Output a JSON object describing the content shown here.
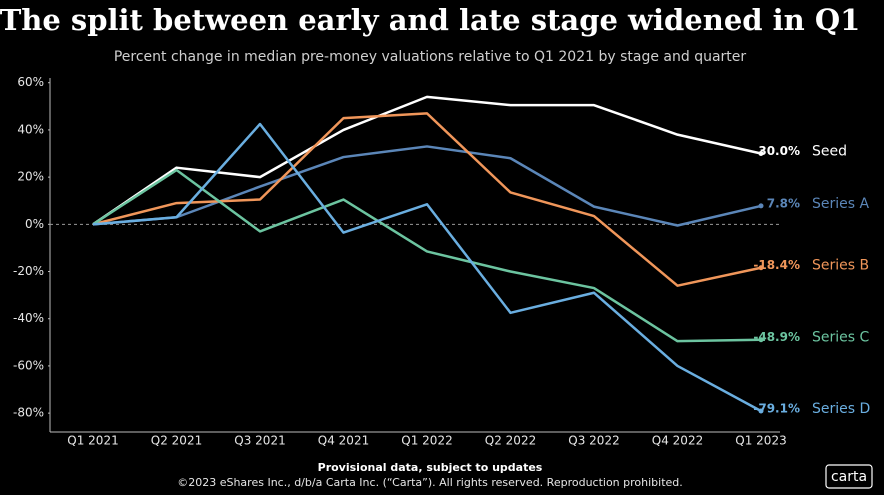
{
  "chart_data": {
    "type": "line",
    "title": "The split between early and late stage widened in Q1",
    "subtitle": "Percent change in median pre-money valuations relative to Q1 2021 by stage and quarter",
    "categories": [
      "Q1 2021",
      "Q2 2021",
      "Q3 2021",
      "Q4 2021",
      "Q1 2022",
      "Q2 2022",
      "Q3 2022",
      "Q4 2022",
      "Q1 2023"
    ],
    "ylim": [
      -88,
      62
    ],
    "yticks": [
      {
        "value": 60,
        "label": "60%"
      },
      {
        "value": 40,
        "label": "40%"
      },
      {
        "value": 20,
        "label": "20%"
      },
      {
        "value": 0,
        "label": "0%"
      },
      {
        "value": -20,
        "label": "-20%"
      },
      {
        "value": -40,
        "label": "-40%"
      },
      {
        "value": -60,
        "label": "-60%"
      },
      {
        "value": -80,
        "label": "-80%"
      }
    ],
    "series": [
      {
        "name": "Seed",
        "color": "#ffffff",
        "values": [
          0,
          24,
          20,
          40,
          54,
          50.5,
          50.5,
          38,
          30.0
        ],
        "value_labels": [
          null,
          null,
          null,
          null,
          null,
          null,
          null,
          null,
          "30.0%"
        ]
      },
      {
        "name": "Series A",
        "color": "#5b86b8",
        "values": [
          0,
          3,
          16,
          28.5,
          33,
          28,
          7.5,
          -0.5,
          7.8
        ],
        "value_labels": [
          null,
          null,
          null,
          null,
          null,
          null,
          null,
          null,
          "7.8%"
        ]
      },
      {
        "name": "Series B",
        "color": "#f0965a",
        "values": [
          0,
          9,
          10.5,
          45,
          47,
          13.5,
          3.5,
          -26,
          -18.4
        ],
        "value_labels": [
          null,
          null,
          null,
          null,
          null,
          null,
          null,
          null,
          "-18.4%"
        ]
      },
      {
        "name": "Series C",
        "color": "#6cc4a0",
        "values": [
          0,
          23,
          -3,
          10.5,
          -11.5,
          -20,
          -27,
          -49.5,
          -48.9
        ],
        "value_labels": [
          null,
          null,
          null,
          null,
          null,
          null,
          null,
          null,
          "-48.9%"
        ]
      },
      {
        "name": "Series D",
        "color": "#6aaee0",
        "values": [
          0,
          3,
          42.5,
          -3.5,
          8.5,
          -37.5,
          -29,
          -60,
          -79.1
        ],
        "value_labels": [
          null,
          null,
          null,
          null,
          null,
          null,
          null,
          null,
          "-79.1%"
        ]
      }
    ]
  },
  "footer": {
    "note": "Provisional data, subject to updates",
    "copyright": "©2023 eShares Inc., d/b/a Carta Inc. (“Carta”). All rights reserved. Reproduction prohibited.",
    "logo": "carta"
  }
}
